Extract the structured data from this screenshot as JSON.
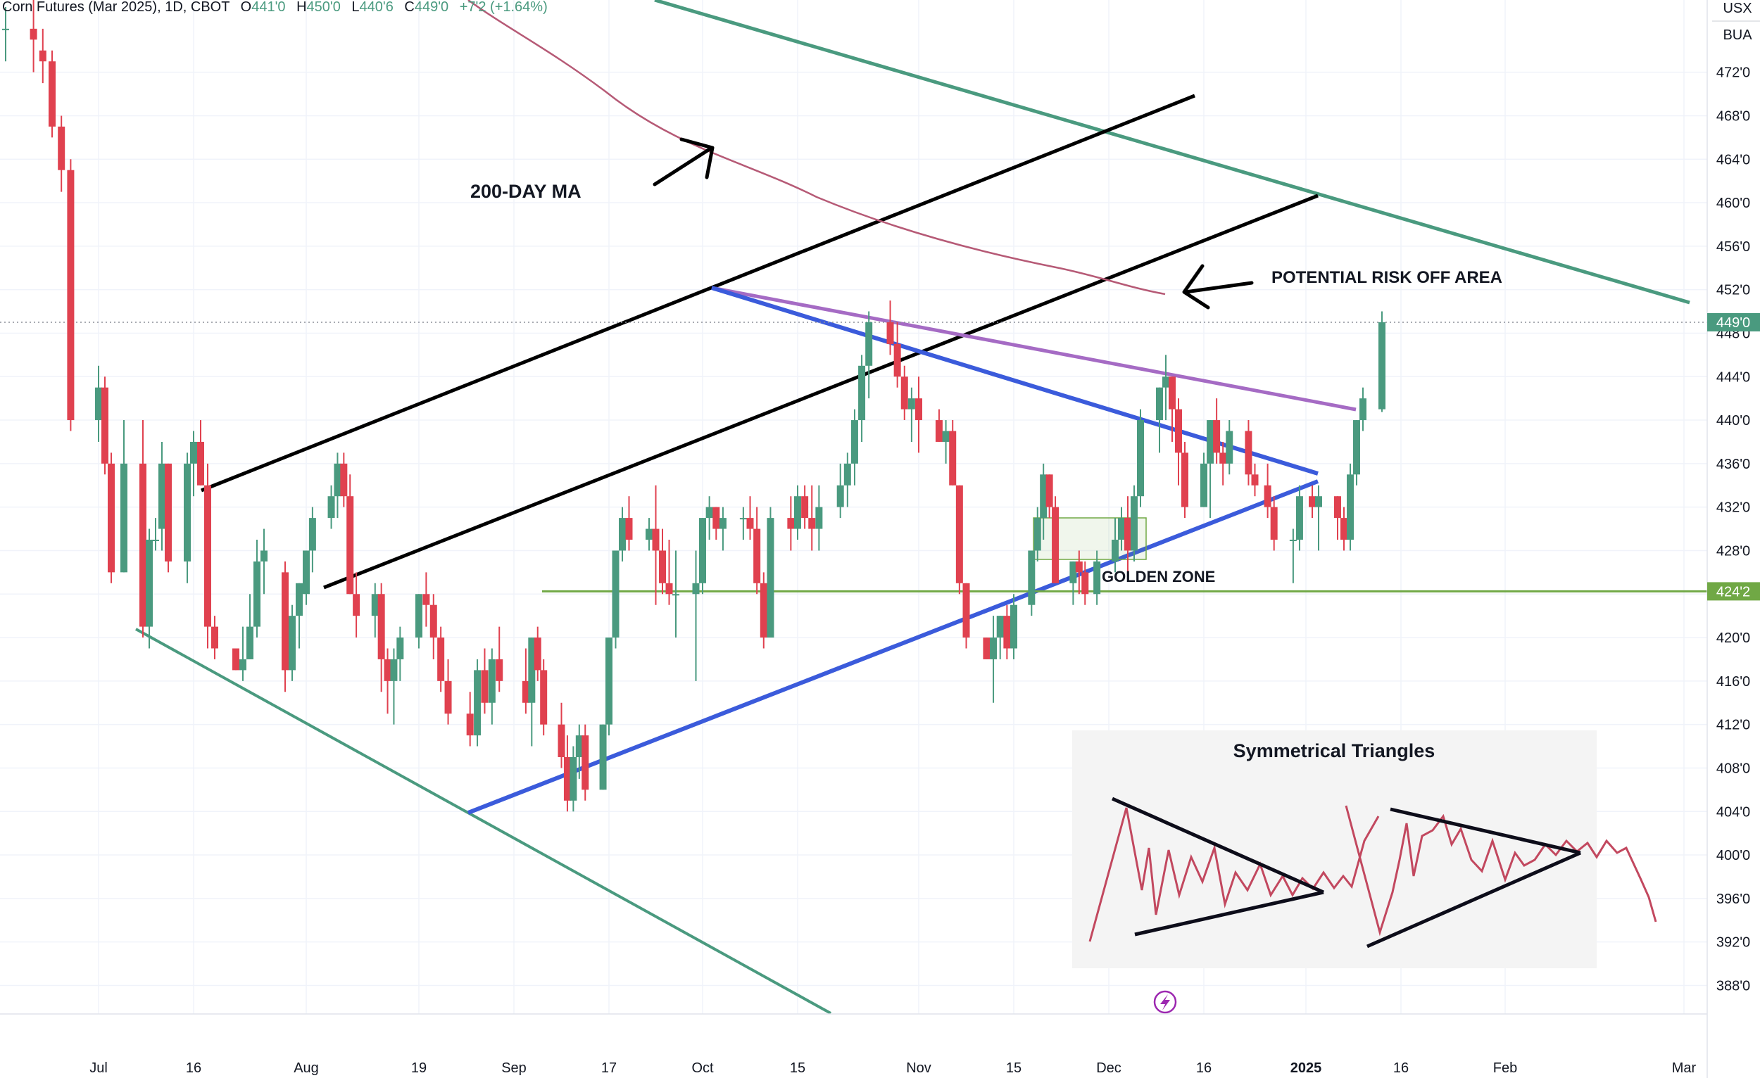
{
  "header": {
    "symbol": "Corn Futures (Mar 2025), 1D, CBOT",
    "o_label": "O",
    "o_value": "441'0",
    "h_label": "H",
    "h_value": "450'0",
    "l_label": "L",
    "l_value": "440'6",
    "c_label": "C",
    "c_value": "449'0",
    "change": "+7'2 (+1.64%)"
  },
  "currency": {
    "line1": "USX",
    "line2": "BUA"
  },
  "colors": {
    "up": "#4a9a7f",
    "down": "#e0414f",
    "ma200": "#b65a76",
    "channel_black": "#000000",
    "wedge_green": "#4a9a7f",
    "triangle_blue": "#3b5bdb",
    "resistance_purple": "#a56bc4",
    "support_green": "#70a845",
    "last_price_bg": "#4a9a7f"
  },
  "annotations": {
    "ma_label": "200-DAY MA",
    "risk_label": "POTENTIAL RISK OFF AREA",
    "golden_label": "GOLDEN ZONE",
    "inset_title": "Symmetrical Triangles"
  },
  "chart_data": {
    "type": "candlestick",
    "title": "Corn Futures (Mar 2025), 1D, CBOT",
    "ylim": [
      384,
      478
    ],
    "y_ticks": [
      "472'0",
      "468'0",
      "464'0",
      "460'0",
      "456'0",
      "452'0",
      "448'0",
      "444'0",
      "440'0",
      "436'0",
      "432'0",
      "428'0",
      "424'0",
      "420'0",
      "416'0",
      "412'0",
      "408'0",
      "404'0",
      "400'0",
      "396'0",
      "392'0",
      "388'0"
    ],
    "y_tick_values": [
      472,
      468,
      464,
      460,
      456,
      452,
      448,
      444,
      440,
      436,
      432,
      428,
      424,
      420,
      416,
      412,
      408,
      404,
      400,
      396,
      392,
      388
    ],
    "x_ticks": [
      "Jul",
      "16",
      "Aug",
      "19",
      "Sep",
      "17",
      "Oct",
      "15",
      "Nov",
      "15",
      "Dec",
      "16",
      "2025",
      "16",
      "Feb",
      "Mar"
    ],
    "x_tick_dates": [
      "2024-07-01",
      "2024-07-16",
      "2024-08-01",
      "2024-08-19",
      "2024-09-01",
      "2024-09-17",
      "2024-10-01",
      "2024-10-15",
      "2024-11-01",
      "2024-11-15",
      "2024-12-01",
      "2024-12-16",
      "2025-01-01",
      "2025-01-16",
      "2025-02-01",
      "2025-03-01"
    ],
    "last_price": "449'0",
    "last_price_value": 449.0,
    "support_label": "424'2",
    "support_value": 424.25,
    "candles": [
      [
        "2024-06-21",
        476,
        478,
        473,
        476
      ],
      [
        "2024-06-24",
        476,
        479,
        472,
        475
      ],
      [
        "2024-06-25",
        474,
        476,
        471,
        473
      ],
      [
        "2024-06-26",
        473,
        474,
        466,
        467
      ],
      [
        "2024-06-27",
        467,
        468,
        461,
        463
      ],
      [
        "2024-06-28",
        463,
        464,
        439,
        440
      ],
      [
        "2024-07-01",
        440,
        445,
        438,
        443
      ],
      [
        "2024-07-02",
        443,
        444,
        435,
        436
      ],
      [
        "2024-07-03",
        436,
        437,
        425,
        426
      ],
      [
        "2024-07-05",
        426,
        440,
        426,
        436
      ],
      [
        "2024-07-08",
        436,
        440,
        420,
        421
      ],
      [
        "2024-07-09",
        421,
        430,
        419,
        429
      ],
      [
        "2024-07-10",
        429,
        431,
        428,
        429
      ],
      [
        "2024-07-11",
        430,
        438,
        428,
        436
      ],
      [
        "2024-07-12",
        436,
        436,
        426,
        427
      ],
      [
        "2024-07-15",
        427,
        437,
        425,
        436
      ],
      [
        "2024-07-16",
        436,
        439,
        433,
        438
      ],
      [
        "2024-07-17",
        438,
        440,
        434,
        434
      ],
      [
        "2024-07-18",
        434,
        436,
        419,
        421
      ],
      [
        "2024-07-19",
        421,
        422,
        418,
        419
      ],
      [
        "2024-07-22",
        419,
        419,
        417,
        417
      ],
      [
        "2024-07-23",
        417,
        421,
        416,
        418
      ],
      [
        "2024-07-24",
        418,
        424,
        418,
        421
      ],
      [
        "2024-07-25",
        421,
        429,
        420,
        427
      ],
      [
        "2024-07-26",
        427,
        430,
        424,
        428
      ],
      [
        "2024-07-29",
        426,
        427,
        415,
        417
      ],
      [
        "2024-07-30",
        417,
        423,
        416,
        422
      ],
      [
        "2024-07-31",
        422,
        425,
        419,
        425
      ],
      [
        "2024-08-01",
        424,
        428,
        423,
        428
      ],
      [
        "2024-08-02",
        428,
        432,
        426,
        431
      ],
      [
        "2024-08-05",
        431,
        434,
        430,
        433
      ],
      [
        "2024-08-06",
        433,
        437,
        431,
        436
      ],
      [
        "2024-08-07",
        436,
        437,
        432,
        433
      ],
      [
        "2024-08-08",
        433,
        435,
        424,
        424
      ],
      [
        "2024-08-09",
        424,
        426,
        420,
        422
      ],
      [
        "2024-08-12",
        422,
        425,
        420,
        424
      ],
      [
        "2024-08-13",
        424,
        425,
        415,
        418
      ],
      [
        "2024-08-14",
        418,
        419,
        413,
        416
      ],
      [
        "2024-08-15",
        416,
        419,
        412,
        418
      ],
      [
        "2024-08-16",
        418,
        421,
        416,
        420
      ],
      [
        "2024-08-19",
        420,
        424,
        419,
        424
      ],
      [
        "2024-08-20",
        424,
        426,
        421,
        423
      ],
      [
        "2024-08-21",
        423,
        424,
        418,
        420
      ],
      [
        "2024-08-22",
        420,
        421,
        415,
        416
      ],
      [
        "2024-08-23",
        416,
        418,
        412,
        413
      ],
      [
        "2024-08-26",
        413,
        415,
        410,
        411
      ],
      [
        "2024-08-27",
        411,
        418,
        410,
        417
      ],
      [
        "2024-08-28",
        417,
        419,
        413,
        414
      ],
      [
        "2024-08-29",
        414,
        419,
        412,
        418
      ],
      [
        "2024-08-30",
        418,
        421,
        415,
        416
      ],
      [
        "2024-09-03",
        416,
        419,
        413,
        414
      ],
      [
        "2024-09-04",
        414,
        420,
        410,
        420
      ],
      [
        "2024-09-05",
        420,
        421,
        416,
        417
      ],
      [
        "2024-09-06",
        417,
        418,
        411,
        412
      ],
      [
        "2024-09-09",
        412,
        414,
        408,
        409
      ],
      [
        "2024-09-10",
        409,
        411,
        404,
        405
      ],
      [
        "2024-09-11",
        405,
        410,
        404,
        409
      ],
      [
        "2024-09-12",
        409,
        412,
        407,
        411
      ],
      [
        "2024-09-13",
        411,
        412,
        405,
        406
      ],
      [
        "2024-09-16",
        406,
        412,
        406,
        412
      ],
      [
        "2024-09-17",
        412,
        420,
        411,
        420
      ],
      [
        "2024-09-18",
        420,
        428,
        419,
        428
      ],
      [
        "2024-09-19",
        428,
        432,
        427,
        431
      ],
      [
        "2024-09-20",
        431,
        433,
        428,
        429
      ],
      [
        "2024-09-23",
        429,
        431,
        428,
        430
      ],
      [
        "2024-09-24",
        430,
        434,
        423,
        428
      ],
      [
        "2024-09-25",
        428,
        430,
        424,
        425
      ],
      [
        "2024-09-26",
        425,
        429,
        423,
        424
      ],
      [
        "2024-09-27",
        424,
        428,
        420,
        424
      ],
      [
        "2024-09-30",
        424,
        428,
        416,
        425
      ],
      [
        "2024-10-01",
        425,
        431,
        424,
        431
      ],
      [
        "2024-10-02",
        431,
        433,
        429,
        432
      ],
      [
        "2024-10-03",
        432,
        432,
        429,
        430
      ],
      [
        "2024-10-04",
        430,
        432,
        428,
        431
      ],
      [
        "2024-10-07",
        431,
        432,
        429,
        431
      ],
      [
        "2024-10-08",
        431,
        433,
        429,
        430
      ],
      [
        "2024-10-09",
        430,
        432,
        424,
        425
      ],
      [
        "2024-10-10",
        425,
        426,
        419,
        420
      ],
      [
        "2024-10-11",
        420,
        432,
        420,
        431
      ],
      [
        "2024-10-14",
        431,
        433,
        428,
        430
      ],
      [
        "2024-10-15",
        430,
        434,
        429,
        433
      ],
      [
        "2024-10-16",
        433,
        434,
        430,
        431
      ],
      [
        "2024-10-17",
        431,
        434,
        428,
        430
      ],
      [
        "2024-10-18",
        430,
        434,
        428,
        432
      ],
      [
        "2024-10-21",
        432,
        436,
        431,
        434
      ],
      [
        "2024-10-22",
        434,
        437,
        432,
        436
      ],
      [
        "2024-10-23",
        436,
        441,
        434,
        440
      ],
      [
        "2024-10-24",
        440,
        446,
        438,
        445
      ],
      [
        "2024-10-25",
        445,
        450,
        442,
        449
      ],
      [
        "2024-10-28",
        449,
        451,
        446,
        447
      ],
      [
        "2024-10-29",
        447,
        449,
        443,
        444
      ],
      [
        "2024-10-30",
        444,
        445,
        440,
        441
      ],
      [
        "2024-10-31",
        441,
        443,
        438,
        442
      ],
      [
        "2024-11-01",
        442,
        444,
        437,
        440
      ],
      [
        "2024-11-04",
        440,
        441,
        438,
        438
      ],
      [
        "2024-11-05",
        438,
        440,
        436,
        439
      ],
      [
        "2024-11-06",
        439,
        440,
        434,
        434
      ],
      [
        "2024-11-07",
        434,
        434,
        424,
        425
      ],
      [
        "2024-11-08",
        425,
        425,
        419,
        420
      ],
      [
        "2024-11-11",
        420,
        420,
        418,
        418
      ],
      [
        "2024-11-12",
        418,
        422,
        414,
        420
      ],
      [
        "2024-11-13",
        420,
        422,
        418,
        422
      ],
      [
        "2024-11-14",
        422,
        423,
        418,
        419
      ],
      [
        "2024-11-15",
        419,
        424,
        418,
        423
      ],
      [
        "2024-11-18",
        423,
        428,
        422,
        428
      ],
      [
        "2024-11-19",
        428,
        432,
        427,
        431
      ],
      [
        "2024-11-20",
        431,
        436,
        429,
        435
      ],
      [
        "2024-11-21",
        435,
        435,
        431,
        432
      ],
      [
        "2024-11-22",
        432,
        433,
        425,
        425
      ],
      [
        "2024-11-25",
        425,
        427,
        423,
        427
      ],
      [
        "2024-11-26",
        427,
        428,
        424,
        426
      ],
      [
        "2024-11-27",
        426,
        427,
        423,
        424
      ],
      [
        "2024-11-29",
        424,
        428,
        423,
        427
      ],
      [
        "2024-12-02",
        427,
        431,
        426,
        429
      ],
      [
        "2024-12-03",
        429,
        432,
        428,
        431
      ],
      [
        "2024-12-04",
        431,
        433,
        426,
        428
      ],
      [
        "2024-12-05",
        428,
        434,
        427,
        433
      ],
      [
        "2024-12-06",
        433,
        441,
        432,
        440
      ],
      [
        "2024-12-09",
        440,
        443,
        437,
        443
      ],
      [
        "2024-12-10",
        443,
        446,
        440,
        444
      ],
      [
        "2024-12-11",
        444,
        444,
        438,
        441
      ],
      [
        "2024-12-12",
        441,
        442,
        434,
        437
      ],
      [
        "2024-12-13",
        437,
        438,
        431,
        432
      ],
      [
        "2024-12-16",
        432,
        437,
        432,
        436
      ],
      [
        "2024-12-17",
        436,
        440,
        431,
        440
      ],
      [
        "2024-12-18",
        440,
        442,
        436,
        437
      ],
      [
        "2024-12-19",
        437,
        438,
        434,
        436
      ],
      [
        "2024-12-20",
        436,
        440,
        435,
        439
      ],
      [
        "2024-12-23",
        439,
        440,
        434,
        435
      ],
      [
        "2024-12-24",
        435,
        436,
        433,
        434
      ],
      [
        "2024-12-26",
        434,
        436,
        431,
        432
      ],
      [
        "2024-12-27",
        432,
        433,
        428,
        429
      ],
      [
        "2024-12-30",
        429,
        430,
        425,
        429
      ],
      [
        "2024-12-31",
        429,
        434,
        428,
        433
      ],
      [
        "2025-01-02",
        433,
        434,
        431,
        432
      ],
      [
        "2025-01-03",
        432,
        434,
        428,
        433
      ],
      [
        "2025-01-06",
        433,
        433,
        429,
        431
      ],
      [
        "2025-01-07",
        431,
        432,
        428,
        429
      ],
      [
        "2025-01-08",
        429,
        436,
        428,
        435
      ],
      [
        "2025-01-09",
        435,
        440,
        434,
        440
      ],
      [
        "2025-01-10",
        440,
        443,
        439,
        442
      ],
      [
        "2025-01-13",
        441,
        450,
        440.75,
        449
      ]
    ]
  }
}
